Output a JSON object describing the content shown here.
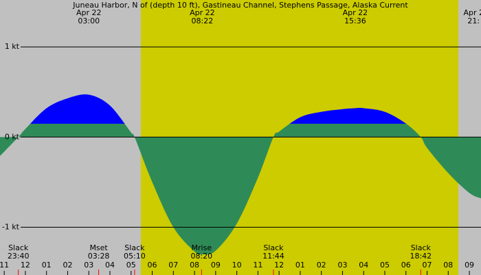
{
  "chart_data": {
    "type": "area",
    "title": "Juneau Harbor, N of (depth 10 ft), Gastineau Channel, Stephens Passage, Alaska Current",
    "x": [
      -1.2,
      -0.333,
      0,
      1,
      2,
      3,
      4,
      5,
      5.167,
      6,
      7,
      8,
      8.367,
      9,
      10,
      11,
      11.733,
      12,
      13,
      14,
      15,
      15.6,
      16,
      17,
      18,
      18.7,
      19,
      20,
      21,
      21.55
    ],
    "values": [
      -0.21,
      0,
      0.09,
      0.32,
      0.43,
      0.47,
      0.35,
      0.05,
      0,
      -0.5,
      -1.0,
      -1.27,
      -1.3,
      -1.26,
      -0.96,
      -0.45,
      0,
      0.06,
      0.22,
      0.28,
      0.31,
      0.32,
      0.32,
      0.28,
      0.15,
      0,
      -0.12,
      -0.4,
      -0.62,
      -0.68
    ],
    "flood_color": "#0000ff",
    "ebb_color": "#2e8b57",
    "night_color": "#c0c0c0",
    "day_color": "#cccc00",
    "daylight": [
      5.46,
      20.48
    ],
    "xlim": [
      -1.2,
      21.55
    ],
    "ylim": [
      -1.53,
      1.52
    ],
    "yticks": [
      {
        "value": 1,
        "label": "1 kt"
      },
      {
        "value": 0,
        "label": "0 kt"
      },
      {
        "value": -1,
        "label": "-1 kt"
      }
    ],
    "xticks": [
      {
        "value": -1,
        "label": "11"
      },
      {
        "value": 0,
        "label": "12"
      },
      {
        "value": 1,
        "label": "01"
      },
      {
        "value": 2,
        "label": "02"
      },
      {
        "value": 3,
        "label": "03"
      },
      {
        "value": 4,
        "label": "04"
      },
      {
        "value": 5,
        "label": "05"
      },
      {
        "value": 6,
        "label": "06"
      },
      {
        "value": 7,
        "label": "07"
      },
      {
        "value": 8,
        "label": "08"
      },
      {
        "value": 9,
        "label": "09"
      },
      {
        "value": 10,
        "label": "10"
      },
      {
        "value": 11,
        "label": "11"
      },
      {
        "value": 12,
        "label": "12"
      },
      {
        "value": 13,
        "label": "01"
      },
      {
        "value": 14,
        "label": "02"
      },
      {
        "value": 15,
        "label": "03"
      },
      {
        "value": 16,
        "label": "04"
      },
      {
        "value": 17,
        "label": "05"
      },
      {
        "value": 18,
        "label": "06"
      },
      {
        "value": 19,
        "label": "07"
      },
      {
        "value": 20,
        "label": "08"
      },
      {
        "value": 21,
        "label": "09"
      }
    ],
    "top_labels": [
      {
        "date": "Apr 22",
        "time": "03:00",
        "at": 3.0
      },
      {
        "date": "Apr 22",
        "time": "08:22",
        "at": 8.367
      },
      {
        "date": "Apr 22",
        "time": "15:36",
        "at": 15.6
      },
      {
        "date": "Apr 2",
        "time": "21:",
        "at": 21.2
      }
    ],
    "events": [
      {
        "label": "Slack",
        "time": "23:40",
        "at": -0.333
      },
      {
        "label": "Mset",
        "time": "03:28",
        "at": 3.467
      },
      {
        "label": "Slack",
        "time": "05:10",
        "at": 5.167
      },
      {
        "label": "Mrise",
        "time": "08:20",
        "at": 8.333
      },
      {
        "label": "Slack",
        "time": "11:44",
        "at": 11.733
      },
      {
        "label": "Slack",
        "time": "18:42",
        "at": 18.7
      }
    ]
  }
}
